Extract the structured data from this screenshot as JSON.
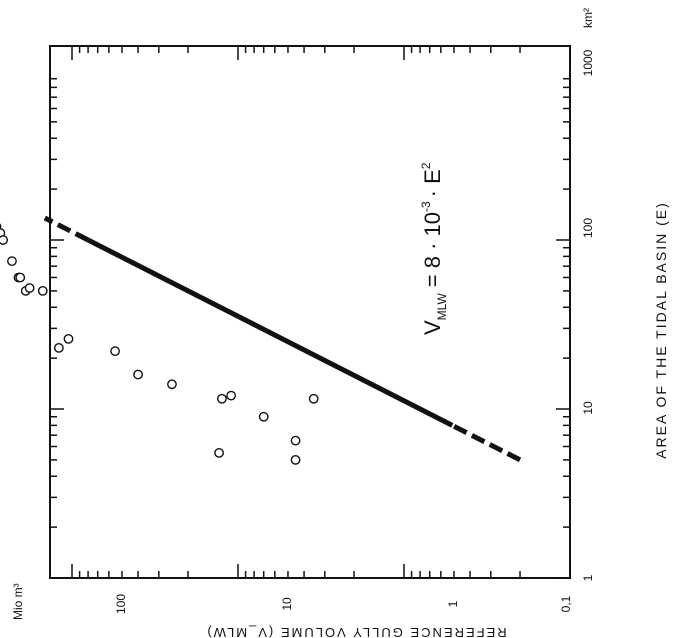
{
  "chart_data": {
    "type": "scatter",
    "orientation": "rotated-90-clockwise",
    "log_x": true,
    "log_y": true,
    "xlim": [
      1,
      1000
    ],
    "ylim": [
      0.1,
      1000
    ],
    "x_ticks": [
      "1",
      "10",
      "100",
      "1000"
    ],
    "y_ticks": [
      "0,1",
      "1",
      "10",
      "100"
    ],
    "x_unit": "km²",
    "y_unit": "Mio m³",
    "xlabel": "AREA OF THE TIDAL BASIN (E)",
    "ylabel": "REFERENCE GULLY VOLUME (V_MLW)",
    "formula_main": "V",
    "formula_sub": "MLW",
    "formula_rest": "= 8 · 10",
    "formula_exp": "-3",
    "formula_tail": "· E",
    "formula_exp2": "2",
    "fit": {
      "coefficient": 0.008,
      "exponent": 2,
      "x_range": [
        5,
        135
      ]
    },
    "points": [
      [
        170,
        330
      ],
      [
        120,
        285
      ],
      [
        110,
        270
      ],
      [
        100,
        260
      ],
      [
        75,
        230
      ],
      [
        60,
        210
      ],
      [
        60,
        205
      ],
      [
        50,
        190
      ],
      [
        52,
        180
      ],
      [
        50,
        150
      ],
      [
        23,
        120
      ],
      [
        26,
        105
      ],
      [
        22,
        55
      ],
      [
        16,
        40
      ],
      [
        14,
        25
      ],
      [
        5.5,
        13
      ],
      [
        11.5,
        12.5
      ],
      [
        12,
        11
      ],
      [
        9,
        7
      ],
      [
        5,
        4.5
      ],
      [
        6.5,
        4.5
      ],
      [
        11.5,
        3.5
      ]
    ],
    "grid": false,
    "legend": "none"
  }
}
